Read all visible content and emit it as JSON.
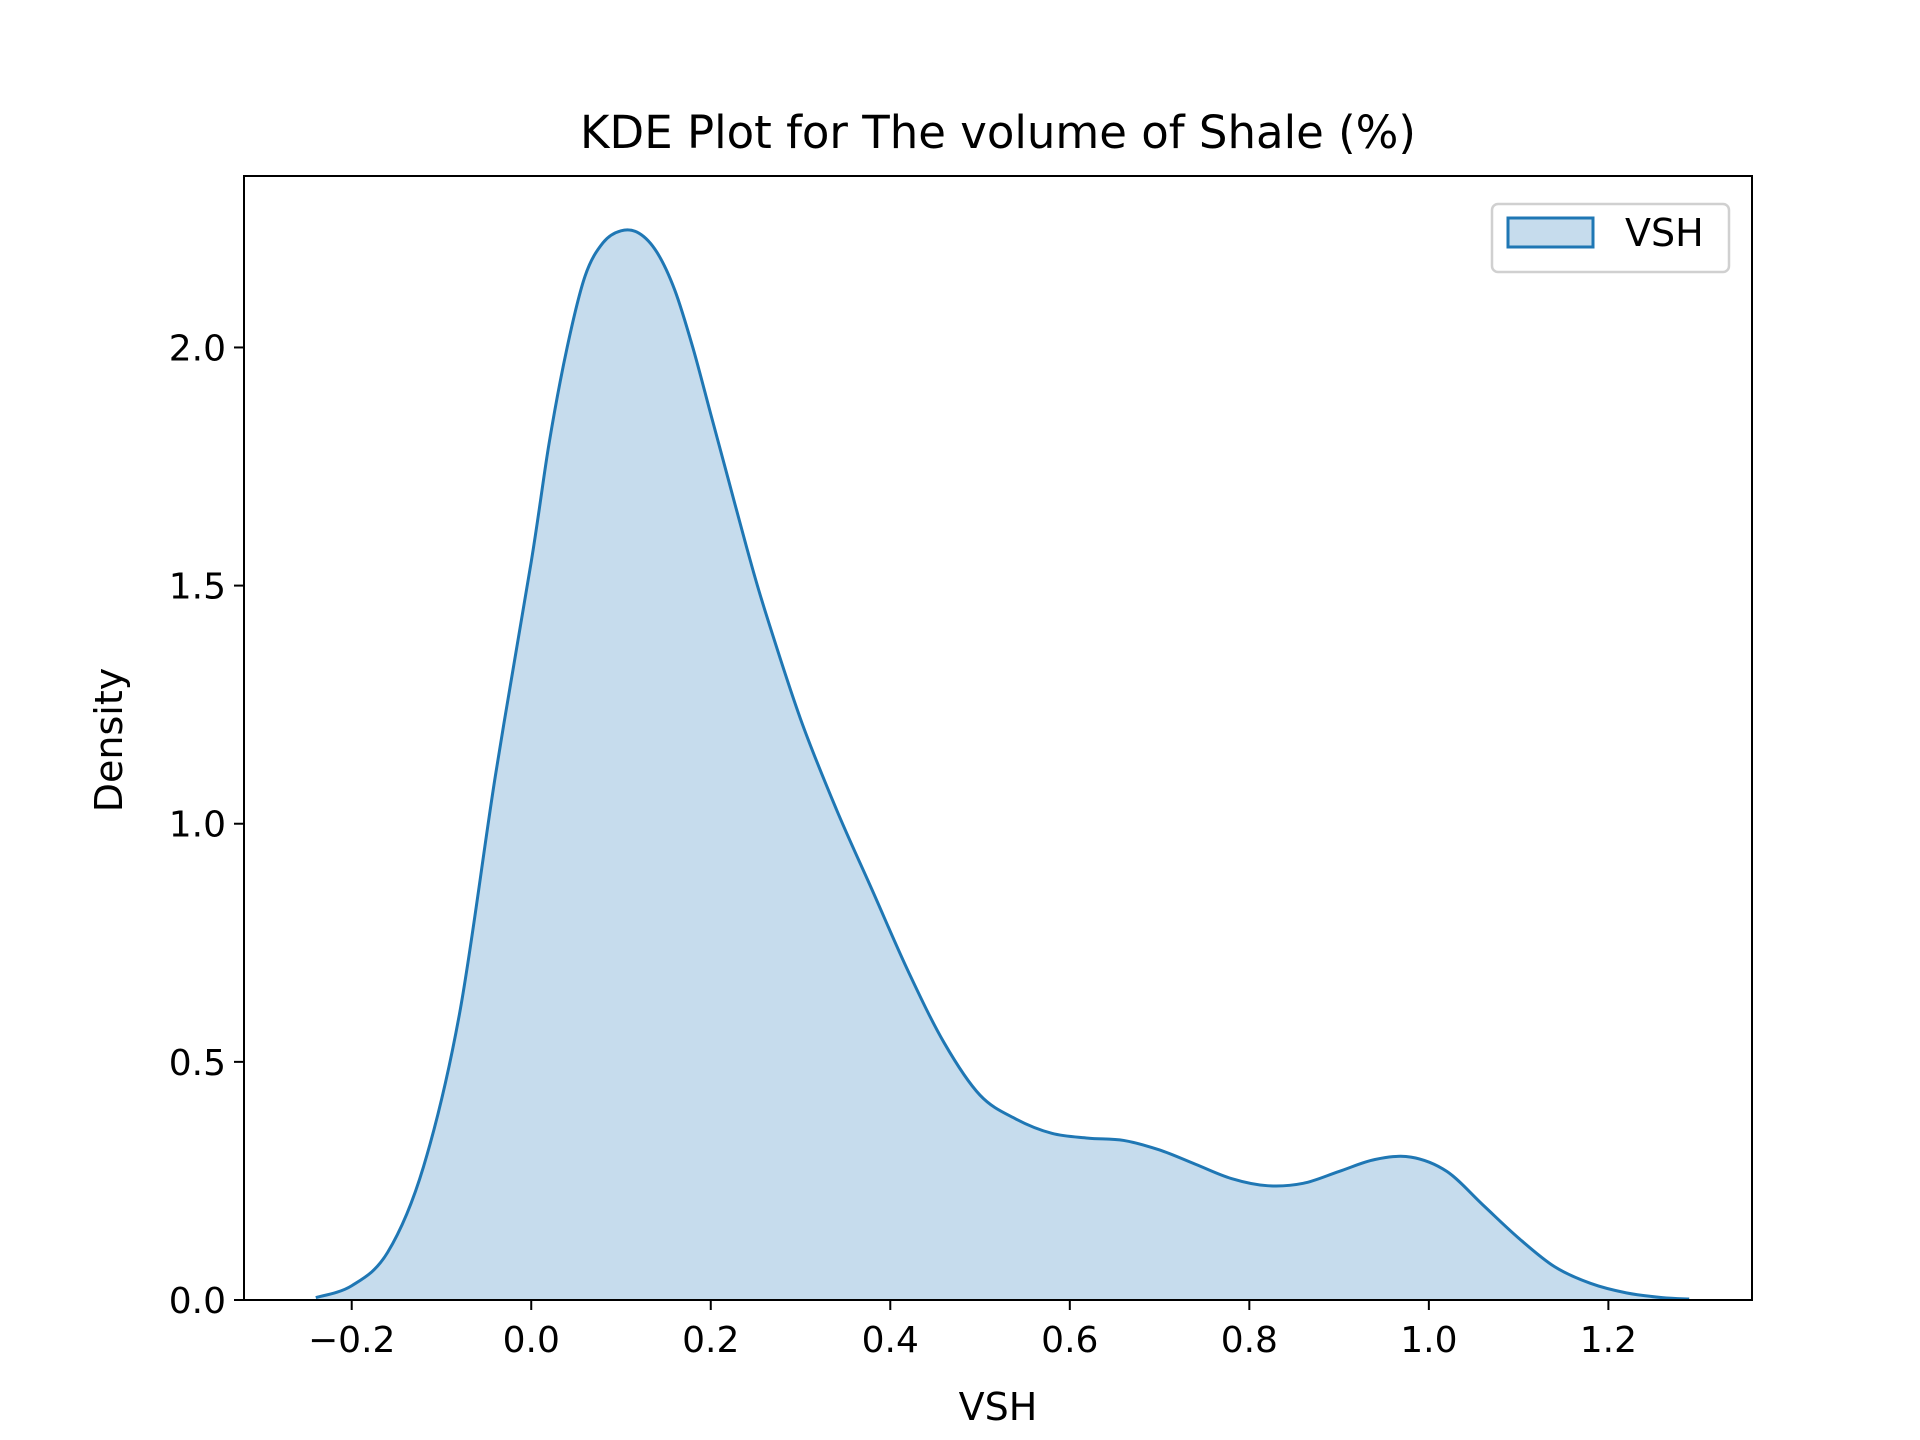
{
  "chart_data": {
    "type": "area",
    "title": "KDE Plot for The volume of Shale (%)",
    "xlabel": "VSH",
    "ylabel": "Density",
    "xlim": [
      -0.32,
      1.36
    ],
    "ylim": [
      0,
      2.36
    ],
    "xticks": [
      -0.2,
      0.0,
      0.2,
      0.4,
      0.6,
      0.8,
      1.0,
      1.2
    ],
    "xtick_labels": [
      "−0.2",
      "0.0",
      "0.2",
      "0.4",
      "0.6",
      "0.8",
      "1.0",
      "1.2"
    ],
    "yticks": [
      0.0,
      0.5,
      1.0,
      1.5,
      2.0
    ],
    "ytick_labels": [
      "0.0",
      "0.5",
      "1.0",
      "1.5",
      "2.0"
    ],
    "grid": false,
    "legend_position": "top-right",
    "series": [
      {
        "name": "VSH",
        "line_color": "#1f77b4",
        "fill_color": "#c6dced",
        "x": [
          -0.24,
          -0.2,
          -0.16,
          -0.12,
          -0.08,
          -0.04,
          0.0,
          0.02,
          0.04,
          0.06,
          0.08,
          0.1,
          0.12,
          0.14,
          0.16,
          0.18,
          0.2,
          0.22,
          0.24,
          0.26,
          0.3,
          0.34,
          0.38,
          0.42,
          0.46,
          0.5,
          0.54,
          0.58,
          0.62,
          0.66,
          0.7,
          0.74,
          0.78,
          0.82,
          0.86,
          0.9,
          0.94,
          0.98,
          1.02,
          1.06,
          1.1,
          1.14,
          1.18,
          1.22,
          1.26,
          1.29
        ],
        "y": [
          0.005,
          0.03,
          0.1,
          0.28,
          0.6,
          1.1,
          1.55,
          1.8,
          2.0,
          2.15,
          2.22,
          2.245,
          2.24,
          2.2,
          2.12,
          2.0,
          1.86,
          1.72,
          1.58,
          1.45,
          1.22,
          1.03,
          0.86,
          0.69,
          0.54,
          0.43,
          0.38,
          0.35,
          0.34,
          0.335,
          0.315,
          0.285,
          0.255,
          0.24,
          0.245,
          0.27,
          0.295,
          0.3,
          0.27,
          0.2,
          0.13,
          0.07,
          0.035,
          0.015,
          0.005,
          0.002
        ]
      }
    ]
  }
}
